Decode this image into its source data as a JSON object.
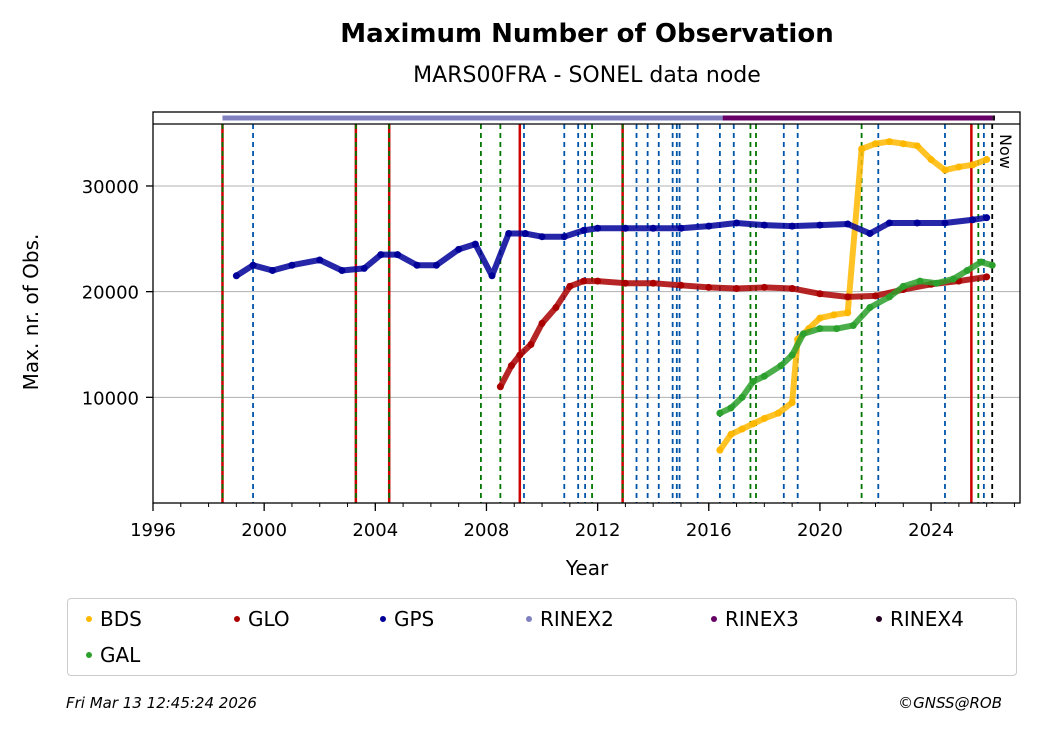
{
  "chart_data": {
    "type": "scatter",
    "title": "Maximum Number of Observation",
    "subtitle": "MARS00FRA - SONEL data node",
    "xlabel": "Year",
    "ylabel": "Max. nr. of Obs.",
    "xlim": [
      1996,
      2027.2
    ],
    "ylim": [
      0,
      37000
    ],
    "xticks": [
      1996,
      2000,
      2004,
      2008,
      2012,
      2016,
      2020,
      2024
    ],
    "xtick_labels": [
      "1996",
      "2000",
      "2004",
      "2008",
      "2012",
      "2016",
      "2020",
      "2024"
    ],
    "yticks": [
      10000,
      20000,
      30000
    ],
    "ytick_labels": [
      "10000",
      "20000",
      "30000"
    ],
    "grid": "horizontal",
    "now_label": "Now",
    "now_x": 2026.2,
    "legend_position": "below",
    "series": [
      {
        "name": "BDS",
        "color": "#ffb800",
        "points": [
          [
            2016.4,
            5000
          ],
          [
            2016.8,
            6500
          ],
          [
            2017.2,
            7000
          ],
          [
            2017.6,
            7500
          ],
          [
            2018.0,
            8000
          ],
          [
            2018.5,
            8500
          ],
          [
            2019.0,
            9500
          ],
          [
            2019.2,
            15500
          ],
          [
            2019.6,
            16500
          ],
          [
            2020.0,
            17500
          ],
          [
            2020.5,
            17800
          ],
          [
            2021.0,
            18000
          ],
          [
            2021.5,
            33500
          ],
          [
            2022.0,
            34000
          ],
          [
            2022.5,
            34200
          ],
          [
            2023.0,
            34000
          ],
          [
            2023.5,
            33800
          ],
          [
            2024.0,
            32500
          ],
          [
            2024.5,
            31500
          ],
          [
            2025.0,
            31800
          ],
          [
            2025.5,
            32000
          ],
          [
            2026.0,
            32500
          ]
        ]
      },
      {
        "name": "GLO",
        "color": "#aa0000",
        "points": [
          [
            2008.5,
            11000
          ],
          [
            2008.9,
            13000
          ],
          [
            2009.2,
            14000
          ],
          [
            2009.6,
            15000
          ],
          [
            2010.0,
            17000
          ],
          [
            2010.5,
            18500
          ],
          [
            2011.0,
            20500
          ],
          [
            2011.5,
            21000
          ],
          [
            2012.0,
            21000
          ],
          [
            2013.0,
            20800
          ],
          [
            2014.0,
            20800
          ],
          [
            2015.0,
            20600
          ],
          [
            2016.0,
            20400
          ],
          [
            2017.0,
            20300
          ],
          [
            2018.0,
            20400
          ],
          [
            2019.0,
            20300
          ],
          [
            2020.0,
            19800
          ],
          [
            2021.0,
            19500
          ],
          [
            2022.0,
            19600
          ],
          [
            2023.0,
            20200
          ],
          [
            2024.0,
            20700
          ],
          [
            2025.0,
            21000
          ],
          [
            2026.0,
            21400
          ]
        ]
      },
      {
        "name": "GPS",
        "color": "#000099",
        "points": [
          [
            1999.0,
            21500
          ],
          [
            1999.6,
            22500
          ],
          [
            2000.3,
            22000
          ],
          [
            2001.0,
            22500
          ],
          [
            2002.0,
            23000
          ],
          [
            2002.8,
            22000
          ],
          [
            2003.6,
            22200
          ],
          [
            2004.2,
            23500
          ],
          [
            2004.8,
            23500
          ],
          [
            2005.5,
            22500
          ],
          [
            2006.2,
            22500
          ],
          [
            2007.0,
            24000
          ],
          [
            2007.6,
            24500
          ],
          [
            2008.2,
            21500
          ],
          [
            2008.8,
            25500
          ],
          [
            2009.4,
            25500
          ],
          [
            2010.0,
            25200
          ],
          [
            2010.8,
            25200
          ],
          [
            2011.5,
            25800
          ],
          [
            2012.0,
            26000
          ],
          [
            2013.0,
            26000
          ],
          [
            2014.0,
            26000
          ],
          [
            2015.0,
            26000
          ],
          [
            2016.0,
            26200
          ],
          [
            2017.0,
            26500
          ],
          [
            2018.0,
            26300
          ],
          [
            2019.0,
            26200
          ],
          [
            2020.0,
            26300
          ],
          [
            2021.0,
            26400
          ],
          [
            2021.8,
            25500
          ],
          [
            2022.5,
            26500
          ],
          [
            2023.5,
            26500
          ],
          [
            2024.5,
            26500
          ],
          [
            2025.5,
            26800
          ],
          [
            2026.0,
            27000
          ]
        ]
      },
      {
        "name": "GAL",
        "color": "#2ca02c",
        "points": [
          [
            2016.4,
            8500
          ],
          [
            2016.8,
            9000
          ],
          [
            2017.2,
            10000
          ],
          [
            2017.6,
            11500
          ],
          [
            2018.0,
            12000
          ],
          [
            2018.6,
            13000
          ],
          [
            2019.0,
            14000
          ],
          [
            2019.4,
            16000
          ],
          [
            2020.0,
            16500
          ],
          [
            2020.6,
            16500
          ],
          [
            2021.2,
            16800
          ],
          [
            2021.8,
            18500
          ],
          [
            2022.5,
            19500
          ],
          [
            2023.0,
            20500
          ],
          [
            2023.6,
            21000
          ],
          [
            2024.2,
            20800
          ],
          [
            2024.8,
            21200
          ],
          [
            2025.3,
            22000
          ],
          [
            2025.8,
            22800
          ],
          [
            2026.2,
            22500
          ]
        ]
      }
    ],
    "rinex_bars": [
      {
        "name": "RINEX2",
        "color": "#8080c0",
        "start": 1998.5,
        "end": 2016.5
      },
      {
        "name": "RINEX3",
        "color": "#660066",
        "start": 2016.5,
        "end": 2026.2
      },
      {
        "name": "RINEX4",
        "color": "#220022",
        "start": 2026.2,
        "end": 2026.3
      }
    ],
    "event_lines": [
      {
        "x": 1998.5,
        "color": "#cc0000",
        "style": "solid"
      },
      {
        "x": 1998.5,
        "color": "#007700",
        "style": "dashed"
      },
      {
        "x": 1999.6,
        "color": "#0055aa",
        "style": "dashed"
      },
      {
        "x": 2003.3,
        "color": "#cc0000",
        "style": "solid"
      },
      {
        "x": 2003.3,
        "color": "#007700",
        "style": "dashed"
      },
      {
        "x": 2004.5,
        "color": "#cc0000",
        "style": "solid"
      },
      {
        "x": 2004.5,
        "color": "#007700",
        "style": "dashed"
      },
      {
        "x": 2007.8,
        "color": "#007700",
        "style": "dashed"
      },
      {
        "x": 2008.5,
        "color": "#007700",
        "style": "dashed"
      },
      {
        "x": 2009.2,
        "color": "#cc0000",
        "style": "solid"
      },
      {
        "x": 2009.35,
        "color": "#0055aa",
        "style": "dashed"
      },
      {
        "x": 2010.8,
        "color": "#0055aa",
        "style": "dashed"
      },
      {
        "x": 2011.3,
        "color": "#0055aa",
        "style": "dashed"
      },
      {
        "x": 2011.55,
        "color": "#0055aa",
        "style": "dashed"
      },
      {
        "x": 2011.8,
        "color": "#007700",
        "style": "dashed"
      },
      {
        "x": 2012.9,
        "color": "#cc0000",
        "style": "solid"
      },
      {
        "x": 2012.9,
        "color": "#007700",
        "style": "dashed"
      },
      {
        "x": 2013.4,
        "color": "#0055aa",
        "style": "dashed"
      },
      {
        "x": 2013.8,
        "color": "#0055aa",
        "style": "dashed"
      },
      {
        "x": 2014.2,
        "color": "#0055aa",
        "style": "dashed"
      },
      {
        "x": 2014.7,
        "color": "#0055aa",
        "style": "dashed"
      },
      {
        "x": 2014.85,
        "color": "#0055aa",
        "style": "dashed"
      },
      {
        "x": 2014.95,
        "color": "#0055aa",
        "style": "dashed"
      },
      {
        "x": 2015.6,
        "color": "#0055aa",
        "style": "dashed"
      },
      {
        "x": 2016.4,
        "color": "#0055aa",
        "style": "dashed"
      },
      {
        "x": 2016.9,
        "color": "#0055aa",
        "style": "dashed"
      },
      {
        "x": 2017.5,
        "color": "#007700",
        "style": "dashed"
      },
      {
        "x": 2017.7,
        "color": "#007700",
        "style": "dashed"
      },
      {
        "x": 2018.7,
        "color": "#0055aa",
        "style": "dashed"
      },
      {
        "x": 2019.2,
        "color": "#0055aa",
        "style": "dashed"
      },
      {
        "x": 2021.5,
        "color": "#007700",
        "style": "dashed"
      },
      {
        "x": 2022.1,
        "color": "#0055aa",
        "style": "dashed"
      },
      {
        "x": 2024.5,
        "color": "#0055aa",
        "style": "dashed"
      },
      {
        "x": 2025.45,
        "color": "#cc0000",
        "style": "solid"
      },
      {
        "x": 2025.7,
        "color": "#007700",
        "style": "dashed"
      },
      {
        "x": 2025.9,
        "color": "#0055aa",
        "style": "dashed"
      },
      {
        "x": 2026.2,
        "color": "#000000",
        "style": "dashed"
      }
    ]
  },
  "legend": {
    "items": [
      {
        "label": "BDS",
        "color": "#ffb800"
      },
      {
        "label": "GLO",
        "color": "#aa0000"
      },
      {
        "label": "GPS",
        "color": "#000099"
      },
      {
        "label": "RINEX2",
        "color": "#8080c0"
      },
      {
        "label": "RINEX3",
        "color": "#660066"
      },
      {
        "label": "RINEX4",
        "color": "#220022"
      },
      {
        "label": "GAL",
        "color": "#2ca02c"
      }
    ]
  },
  "footer": {
    "timestamp": "Fri Mar 13 12:45:24 2026",
    "copyright": "©GNSS@ROB"
  }
}
